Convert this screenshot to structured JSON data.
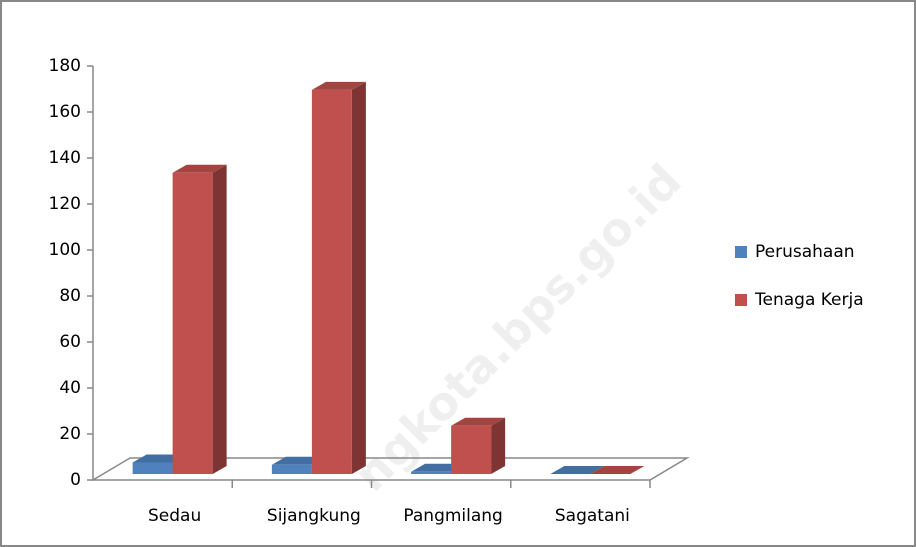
{
  "chart_data": {
    "type": "bar3d",
    "categories": [
      "Sedau",
      "Sijangkung",
      "Pangmilang",
      "Sagatani"
    ],
    "series": [
      {
        "name": "Perusahaan",
        "color": "#4f81bd",
        "values": [
          5,
          4,
          1,
          0
        ]
      },
      {
        "name": "Tenaga Kerja",
        "color": "#c0504d",
        "values": [
          131,
          167,
          21,
          0
        ]
      }
    ],
    "ylim": [
      0,
      180
    ],
    "yticks": [
      0,
      20,
      40,
      60,
      80,
      100,
      120,
      140,
      160,
      180
    ],
    "legend": "right",
    "watermark": "ngkota.bps.go.id"
  }
}
